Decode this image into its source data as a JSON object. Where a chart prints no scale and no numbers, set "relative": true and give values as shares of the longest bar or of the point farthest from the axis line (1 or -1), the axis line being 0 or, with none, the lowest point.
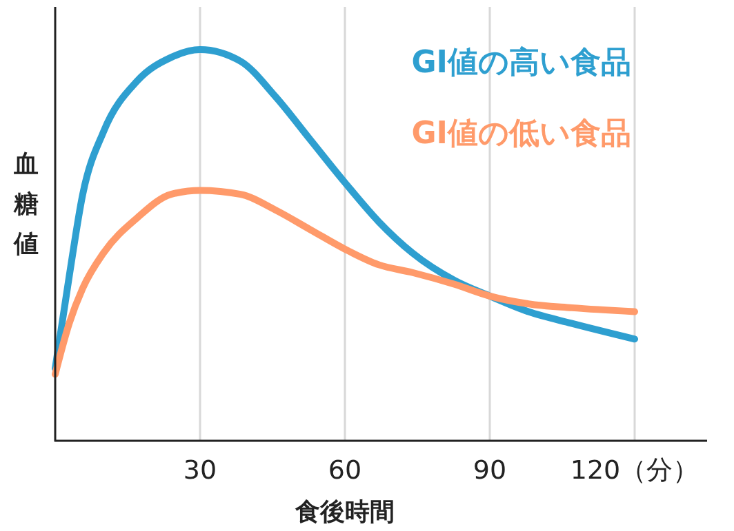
{
  "chart_data": {
    "type": "line",
    "relative": true,
    "xlabel": "食後時間",
    "ylabel": "血糖値",
    "xlim": [
      0,
      135
    ],
    "xticks": [
      30,
      60,
      90,
      {
        "value": 120,
        "label": "120（分）"
      }
    ],
    "grid": "x",
    "legend": "top right",
    "line_style": "solid",
    "series": [
      {
        "name": "GI値の高い食品",
        "color": "#2e9fd0",
        "x": [
          0,
          2.9,
          5.7,
          10,
          17,
          24,
          30,
          38.4,
          45.6,
          52.8,
          60,
          67,
          74,
          82.7,
          90,
          98,
          107,
          120
        ],
        "values": [
          0.185,
          0.42,
          0.63,
          0.79,
          0.92,
          0.98,
          1.0,
          0.97,
          0.88,
          0.77,
          0.66,
          0.56,
          0.48,
          0.41,
          0.37,
          0.33,
          0.3,
          0.26
        ]
      },
      {
        "name": "GI値の低い食品",
        "color": "#ff9a6a",
        "x": [
          0,
          2.9,
          5.7,
          10,
          17,
          24,
          30,
          38.4,
          45.6,
          52.8,
          60,
          67,
          74,
          82.7,
          90,
          98,
          107,
          120
        ],
        "values": [
          0.17,
          0.3,
          0.39,
          0.48,
          0.57,
          0.63,
          0.64,
          0.63,
          0.59,
          0.54,
          0.49,
          0.45,
          0.43,
          0.4,
          0.37,
          0.35,
          0.34,
          0.33
        ]
      }
    ]
  }
}
